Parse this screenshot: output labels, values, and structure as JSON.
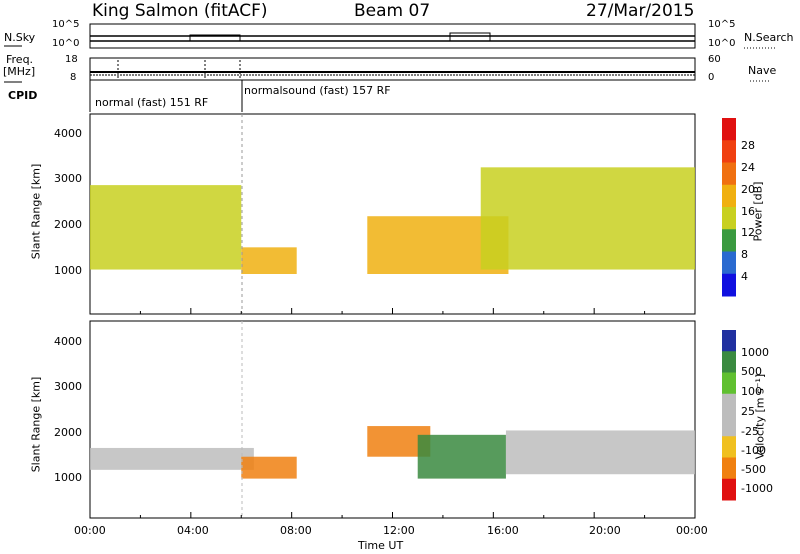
{
  "header": {
    "station": "King Salmon (fitACF)",
    "beam": "Beam 07",
    "date": "27/Mar/2015"
  },
  "top_panels": {
    "nsky_label": "N.Sky",
    "nsearch_label": "N.Search",
    "freq_label": "Freq.",
    "freq_unit": "[MHz]",
    "nave_label": "Nave",
    "cpid_label": "CPID",
    "left_ticks_noise": [
      "10^5",
      "10^0"
    ],
    "right_ticks_noise": [
      "10^5",
      "10^0"
    ],
    "left_ticks_freq": [
      "18",
      "8"
    ],
    "right_ticks_nave": [
      "60",
      "0"
    ],
    "cpid_segments": [
      "normal (fast) 151 RF",
      "normalsound (fast) 157 RF"
    ]
  },
  "axis": {
    "ylabel": "Slant Range [km]",
    "xlabel": "Time UT",
    "yticks": [
      "1000",
      "2000",
      "3000",
      "4000"
    ],
    "xticks": [
      "00:00",
      "04:00",
      "08:00",
      "12:00",
      "16:00",
      "20:00",
      "00:00"
    ]
  },
  "colorbars": {
    "power": {
      "label": "Power [dB]",
      "ticks": [
        "28",
        "24",
        "20",
        "16",
        "12",
        "8",
        "4"
      ]
    },
    "velocity": {
      "label": "Velocity [m s⁻¹]",
      "ticks": [
        "1000",
        "500",
        "100",
        "25",
        "-25",
        "-100",
        "-500",
        "-1000"
      ]
    }
  },
  "chart_data": [
    {
      "type": "heatmap",
      "title": "Power",
      "xlabel": "Time UT",
      "ylabel": "Slant Range [km]",
      "xlim": [
        "00:00",
        "24:00"
      ],
      "ylim": [
        0,
        4500
      ],
      "colorbar": {
        "label": "Power [dB]",
        "range": [
          0,
          30
        ]
      },
      "regions": [
        {
          "t_start": 0.0,
          "t_end": 6.0,
          "r_low": 1000,
          "r_high": 2900,
          "power_db": 16
        },
        {
          "t_start": 6.0,
          "t_end": 8.2,
          "r_low": 900,
          "r_high": 1500,
          "power_db": 20
        },
        {
          "t_start": 11.0,
          "t_end": 16.6,
          "r_low": 900,
          "r_high": 2200,
          "power_db": 18
        },
        {
          "t_start": 15.5,
          "t_end": 24.0,
          "r_low": 1000,
          "r_high": 3300,
          "power_db": 14
        }
      ]
    },
    {
      "type": "heatmap",
      "title": "Velocity",
      "xlabel": "Time UT",
      "ylabel": "Slant Range [km]",
      "xlim": [
        "00:00",
        "24:00"
      ],
      "ylim": [
        0,
        4500
      ],
      "colorbar": {
        "label": "Velocity [m s⁻¹]",
        "range": [
          -1000,
          1000
        ]
      },
      "regions": [
        {
          "t_start": 0.0,
          "t_end": 6.5,
          "r_low": 1100,
          "r_high": 1600,
          "velocity": 0
        },
        {
          "t_start": 6.0,
          "t_end": 8.2,
          "r_low": 900,
          "r_high": 1400,
          "velocity": -300
        },
        {
          "t_start": 11.0,
          "t_end": 13.5,
          "r_low": 1400,
          "r_high": 2100,
          "velocity": -400
        },
        {
          "t_start": 13.0,
          "t_end": 16.5,
          "r_low": 900,
          "r_high": 1900,
          "velocity": 200
        },
        {
          "t_start": 16.5,
          "t_end": 24.0,
          "r_low": 1000,
          "r_high": 2000,
          "velocity": 0
        }
      ]
    }
  ]
}
